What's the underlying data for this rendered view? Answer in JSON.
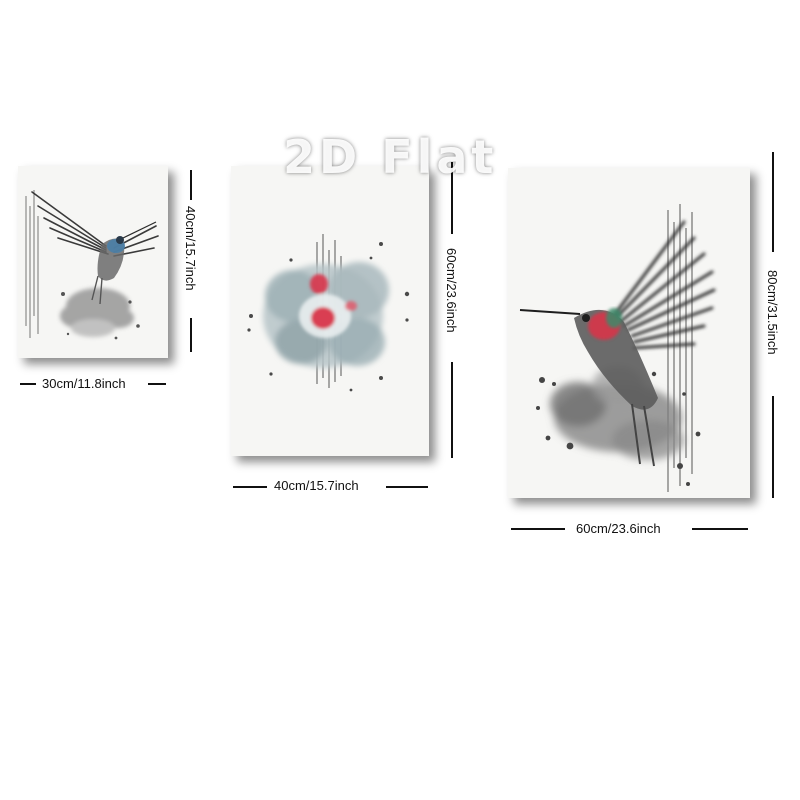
{
  "watermark": "2D Flat",
  "panels": [
    {
      "subject": "hummingbird",
      "width_label": "30cm/11.8inch",
      "height_label": "40cm/15.7inch"
    },
    {
      "subject": "watercolor-flower",
      "width_label": "40cm/15.7inch",
      "height_label": "60cm/23.6inch"
    },
    {
      "subject": "hummingbird",
      "width_label": "60cm/23.6inch",
      "height_label": "80cm/31.5inch"
    }
  ],
  "colors": {
    "ink": "#3a3a3a",
    "accent_red": "#d8344a",
    "accent_blue": "#4a7fa8",
    "paper": "#f6f6f4"
  }
}
